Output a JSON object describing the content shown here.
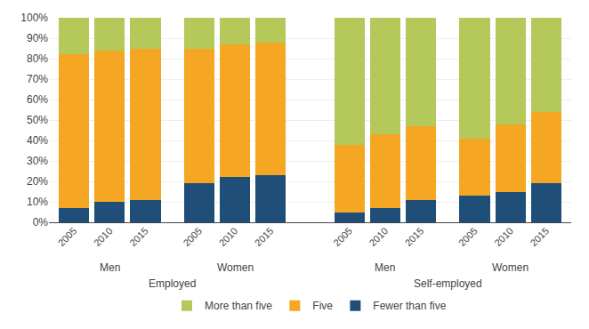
{
  "chart_data": {
    "type": "bar",
    "stacked": true,
    "categories": [
      "2005",
      "2010",
      "2015",
      "2005",
      "2010",
      "2015",
      "2005",
      "2010",
      "2015",
      "2005",
      "2010",
      "2015"
    ],
    "groups": [
      {
        "label": "Employed",
        "groups": [
          {
            "label": "Men",
            "size": 3
          },
          {
            "label": "Women",
            "size": 3
          }
        ]
      },
      {
        "label": "Self-employed",
        "groups": [
          {
            "label": "Men",
            "size": 3
          },
          {
            "label": "Women",
            "size": 3
          }
        ]
      }
    ],
    "series": [
      {
        "name": "Fewer than five",
        "color": "#1f4e79",
        "values": [
          7,
          10,
          11,
          19,
          22,
          23,
          5,
          7,
          11,
          13,
          15,
          19
        ]
      },
      {
        "name": "Five",
        "color": "#f5a623",
        "values": [
          75,
          74,
          74,
          66,
          65,
          65,
          33,
          36,
          36,
          28,
          33,
          35
        ]
      },
      {
        "name": "More than five",
        "color": "#b5c85a",
        "values": [
          18,
          16,
          15,
          15,
          13,
          12,
          62,
          57,
          53,
          59,
          52,
          46
        ]
      }
    ],
    "ylim": [
      0,
      100
    ],
    "yticks": [
      {
        "value": 0,
        "label": "0%"
      },
      {
        "value": 10,
        "label": "10%"
      },
      {
        "value": 20,
        "label": "20%"
      },
      {
        "value": 30,
        "label": "30%"
      },
      {
        "value": 40,
        "label": "40%"
      },
      {
        "value": 50,
        "label": "50%"
      },
      {
        "value": 60,
        "label": "60%"
      },
      {
        "value": 70,
        "label": "70%"
      },
      {
        "value": 80,
        "label": "80%"
      },
      {
        "value": 90,
        "label": "90%"
      },
      {
        "value": 100,
        "label": "100%"
      }
    ],
    "grid": true,
    "legend": "bottom"
  }
}
